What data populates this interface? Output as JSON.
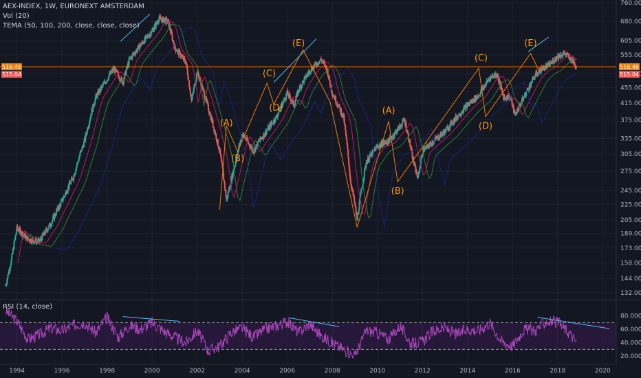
{
  "header": {
    "symbol_line": "AEX-INDEX, 1W, EURONEXT AMSTERDAM",
    "vol_label": "Vol (20)",
    "tema_label": "TEMA (50, 100, 200, close, close, close)"
  },
  "rsi_panel": {
    "label": "RSI (14, close)"
  },
  "colors": {
    "background": "#131722",
    "grid": "#1f2330",
    "axis_text": "#b2b5be",
    "candle_up": "#26a69a",
    "candle_down": "#ef5350",
    "horizontal_line": "#f57c00",
    "orange_price_badge": "#f57c00",
    "red_price_badge": "#ef5350",
    "wave_lines": "#f57c00",
    "wave_labels": "#ff9800",
    "trend_lines": "#4fc3f7",
    "tema_red": "#c2185b",
    "tema_green": "#2e7d32",
    "tema_blue": "#1a237e",
    "rsi_line": "#ab47bc",
    "rsi_band": "#7b1fa2",
    "rsi_dashes": "#9598a1"
  },
  "chart_data": [
    {
      "type": "candlestick",
      "ylim": [
        132,
        760
      ],
      "y_scale": "log",
      "y_ticks": [
        "760.00",
        "680.00",
        "605.00",
        "555.00",
        "495.00",
        "455.00",
        "415.00",
        "375.00",
        "335.00",
        "305.00",
        "275.00",
        "245.00",
        "225.00",
        "205.00",
        "189.00",
        "173.00",
        "158.00",
        "144.00",
        "132.00"
      ],
      "x_ticks": [
        "1994",
        "1996",
        "1998",
        "2000",
        "2002",
        "2004",
        "2006",
        "2008",
        "2010",
        "2012",
        "2014",
        "2016",
        "2018",
        "2020"
      ],
      "price_badges": [
        "516.46",
        "515.04"
      ],
      "horizontal_line": 516.46,
      "series": [
        {
          "name": "AEX-INDEX close (approx.)",
          "x": [
            1993.5,
            1993.75,
            1994.0,
            1994.5,
            1995.0,
            1995.5,
            1996.0,
            1996.5,
            1997.0,
            1997.5,
            1998.0,
            1998.3,
            1998.7,
            1999.0,
            1999.5,
            2000.0,
            2000.3,
            2000.7,
            2001.0,
            2001.5,
            2001.75,
            2002.0,
            2002.5,
            2003.0,
            2003.3,
            2003.7,
            2004.0,
            2004.5,
            2004.75,
            2005.0,
            2005.5,
            2006.0,
            2006.3,
            2006.5,
            2007.0,
            2007.5,
            2007.75,
            2008.0,
            2008.5,
            2008.8,
            2009.1,
            2009.5,
            2010.0,
            2010.5,
            2011.0,
            2011.2,
            2011.6,
            2011.8,
            2012.0,
            2012.5,
            2013.0,
            2013.5,
            2014.0,
            2014.5,
            2015.0,
            2015.3,
            2015.6,
            2015.9,
            2016.1,
            2016.5,
            2017.0,
            2017.3,
            2017.6,
            2018.0,
            2018.3,
            2018.6,
            2018.85
          ],
          "values": [
            138,
            160,
            195,
            182,
            180,
            200,
            230,
            265,
            330,
            430,
            480,
            510,
            470,
            540,
            590,
            640,
            690,
            680,
            580,
            530,
            420,
            500,
            400,
            310,
            230,
            290,
            345,
            310,
            330,
            345,
            380,
            440,
            410,
            450,
            505,
            540,
            510,
            440,
            380,
            260,
            205,
            290,
            320,
            330,
            360,
            375,
            290,
            265,
            310,
            330,
            350,
            380,
            410,
            435,
            485,
            495,
            430,
            430,
            385,
            430,
            490,
            510,
            520,
            550,
            560,
            540,
            516
          ]
        }
      ],
      "annotations": [
        {
          "text": "(A)",
          "x": 2003.3,
          "y": 362
        },
        {
          "text": "(B)",
          "x": 2003.8,
          "y": 292
        },
        {
          "text": "(C)",
          "x": 2005.2,
          "y": 488
        },
        {
          "text": "(D)",
          "x": 2005.5,
          "y": 396
        },
        {
          "text": "(E)",
          "x": 2006.5,
          "y": 585
        },
        {
          "text": "(A)",
          "x": 2010.5,
          "y": 390
        },
        {
          "text": "(B)",
          "x": 2010.9,
          "y": 240
        },
        {
          "text": "(C)",
          "x": 2014.6,
          "y": 535
        },
        {
          "text": "(D)",
          "x": 2014.8,
          "y": 355
        },
        {
          "text": "(E)",
          "x": 2016.8,
          "y": 585
        }
      ]
    },
    {
      "type": "line",
      "title": "RSI (14, close)",
      "ylim": [
        15,
        95
      ],
      "y_ticks": [
        "80.0000",
        "60.0000",
        "40.0000",
        "20.0000"
      ],
      "bands": [
        70,
        30
      ],
      "series": [
        {
          "name": "RSI",
          "x": [
            1993.5,
            1994.0,
            1994.5,
            1995.0,
            1995.5,
            1996.0,
            1996.5,
            1997.0,
            1997.5,
            1998.0,
            1998.5,
            1999.0,
            1999.5,
            2000.0,
            2000.5,
            2001.0,
            2001.5,
            2002.0,
            2002.5,
            2003.0,
            2003.5,
            2004.0,
            2004.5,
            2005.0,
            2005.5,
            2006.0,
            2006.5,
            2007.0,
            2007.5,
            2008.0,
            2008.5,
            2009.0,
            2009.5,
            2010.0,
            2010.5,
            2011.0,
            2011.5,
            2012.0,
            2012.5,
            2013.0,
            2013.5,
            2014.0,
            2014.5,
            2015.0,
            2015.5,
            2016.0,
            2016.5,
            2017.0,
            2017.5,
            2018.0,
            2018.5,
            2018.85
          ],
          "values": [
            88,
            72,
            45,
            52,
            62,
            58,
            66,
            70,
            55,
            78,
            48,
            66,
            60,
            70,
            58,
            48,
            40,
            58,
            28,
            35,
            55,
            62,
            48,
            60,
            65,
            72,
            55,
            68,
            50,
            40,
            30,
            20,
            58,
            55,
            45,
            65,
            38,
            42,
            58,
            62,
            52,
            60,
            58,
            70,
            42,
            35,
            60,
            58,
            72,
            70,
            55,
            40
          ]
        }
      ]
    }
  ]
}
